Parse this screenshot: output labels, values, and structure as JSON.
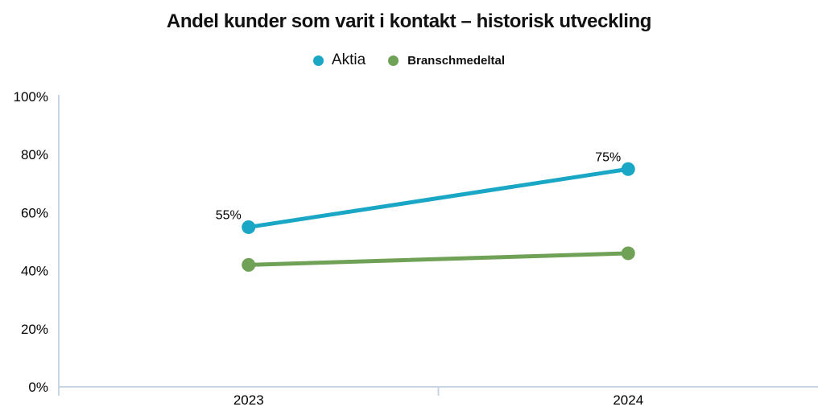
{
  "title": "Andel kunder som varit i kontakt – historisk utveckling",
  "legend": {
    "items": [
      {
        "label": "Aktia",
        "color": "#1AA7C6"
      },
      {
        "label": "Branschmedeltal",
        "color": "#6FA156"
      }
    ]
  },
  "chart_data": {
    "type": "line",
    "title": "Andel kunder som varit i kontakt – historisk utveckling",
    "categories": [
      "2023",
      "2024"
    ],
    "series": [
      {
        "name": "Aktia",
        "color": "#1AA7C6",
        "values": [
          55,
          75
        ],
        "point_labels": [
          "55%",
          "75%"
        ]
      },
      {
        "name": "Branschmedeltal",
        "color": "#6FA156",
        "values": [
          42,
          46
        ],
        "point_labels": [
          "",
          ""
        ]
      }
    ],
    "xlabel": "",
    "ylabel": "",
    "ylim": [
      0,
      100
    ],
    "yticks": [
      0,
      20,
      40,
      60,
      80,
      100
    ],
    "ytick_suffix": "%",
    "grid": false,
    "legend_position": "top",
    "axis_color": "#C8D6E4",
    "text_color": "#000000",
    "background_color": "#FFFFFF"
  }
}
